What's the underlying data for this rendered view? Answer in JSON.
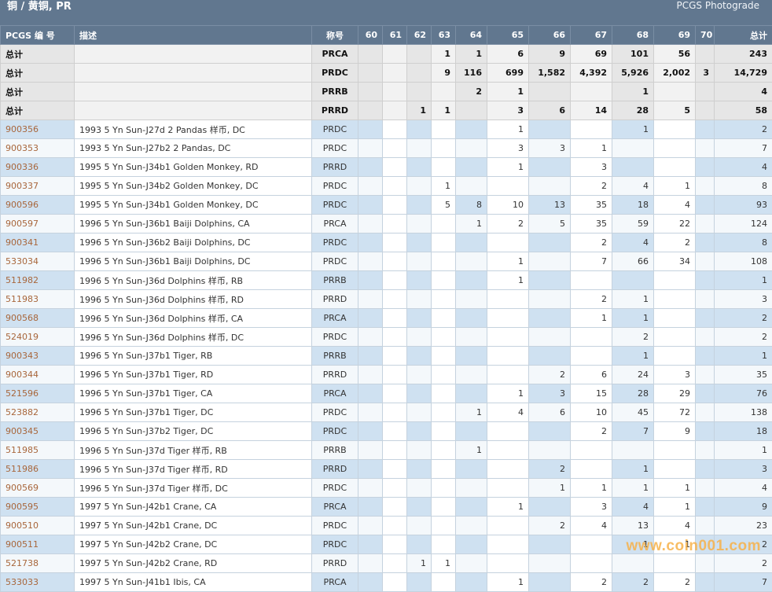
{
  "header": {
    "title": "铜 / 黄铜, PR",
    "brand": "PCGS Photograde"
  },
  "table": {
    "columns": {
      "code": "PCGS 编 号",
      "desc": "描述",
      "desig": "称号",
      "grades": [
        "60",
        "61",
        "62",
        "63",
        "64",
        "65",
        "66",
        "67",
        "68",
        "69",
        "70"
      ],
      "total": "总计"
    },
    "totals": [
      {
        "label": "总计",
        "desig": "PRCA",
        "grades": [
          "",
          "",
          "",
          "1",
          "1",
          "6",
          "9",
          "69",
          "101",
          "56",
          ""
        ],
        "total": "243"
      },
      {
        "label": "总计",
        "desig": "PRDC",
        "grades": [
          "",
          "",
          "",
          "9",
          "116",
          "699",
          "1,582",
          "4,392",
          "5,926",
          "2,002",
          "3"
        ],
        "total": "14,729"
      },
      {
        "label": "总计",
        "desig": "PRRB",
        "grades": [
          "",
          "",
          "",
          "",
          "2",
          "1",
          "",
          "",
          "1",
          "",
          ""
        ],
        "total": "4"
      },
      {
        "label": "总计",
        "desig": "PRRD",
        "grades": [
          "",
          "",
          "1",
          "1",
          "",
          "3",
          "6",
          "14",
          "28",
          "5",
          ""
        ],
        "total": "58"
      }
    ],
    "rows": [
      {
        "code": "900356",
        "desc": "1993 5 Yn Sun-J27d 2 Pandas 样币, DC",
        "desig": "PRDC",
        "grades": [
          "",
          "",
          "",
          "",
          "",
          "1",
          "",
          "",
          "1",
          "",
          ""
        ],
        "total": "2"
      },
      {
        "code": "900353",
        "desc": "1993 5 Yn Sun-J27b2 2 Pandas, DC",
        "desig": "PRDC",
        "grades": [
          "",
          "",
          "",
          "",
          "",
          "3",
          "3",
          "1",
          "",
          "",
          ""
        ],
        "total": "7"
      },
      {
        "code": "900336",
        "desc": "1995 5 Yn Sun-J34b1 Golden Monkey, RD",
        "desig": "PRRD",
        "grades": [
          "",
          "",
          "",
          "",
          "",
          "1",
          "",
          "3",
          "",
          "",
          ""
        ],
        "total": "4"
      },
      {
        "code": "900337",
        "desc": "1995 5 Yn Sun-J34b2 Golden Monkey, DC",
        "desig": "PRDC",
        "grades": [
          "",
          "",
          "",
          "1",
          "",
          "",
          "",
          "2",
          "4",
          "1",
          ""
        ],
        "total": "8"
      },
      {
        "code": "900596",
        "desc": "1995 5 Yn Sun-J34b1 Golden Monkey, DC",
        "desig": "PRDC",
        "grades": [
          "",
          "",
          "",
          "5",
          "8",
          "10",
          "13",
          "35",
          "18",
          "4",
          ""
        ],
        "total": "93"
      },
      {
        "code": "900597",
        "desc": "1996 5 Yn Sun-J36b1 Baiji Dolphins, CA",
        "desig": "PRCA",
        "grades": [
          "",
          "",
          "",
          "",
          "1",
          "2",
          "5",
          "35",
          "59",
          "22",
          ""
        ],
        "total": "124"
      },
      {
        "code": "900341",
        "desc": "1996 5 Yn Sun-J36b2 Baiji Dolphins, DC",
        "desig": "PRDC",
        "grades": [
          "",
          "",
          "",
          "",
          "",
          "",
          "",
          "2",
          "4",
          "2",
          ""
        ],
        "total": "8"
      },
      {
        "code": "533034",
        "desc": "1996 5 Yn Sun-J36b1 Baiji Dolphins, DC",
        "desig": "PRDC",
        "grades": [
          "",
          "",
          "",
          "",
          "",
          "1",
          "",
          "7",
          "66",
          "34",
          ""
        ],
        "total": "108"
      },
      {
        "code": "511982",
        "desc": "1996 5 Yn Sun-J36d Dolphins 样币, RB",
        "desig": "PRRB",
        "grades": [
          "",
          "",
          "",
          "",
          "",
          "1",
          "",
          "",
          "",
          "",
          ""
        ],
        "total": "1"
      },
      {
        "code": "511983",
        "desc": "1996 5 Yn Sun-J36d Dolphins 样币, RD",
        "desig": "PRRD",
        "grades": [
          "",
          "",
          "",
          "",
          "",
          "",
          "",
          "2",
          "1",
          "",
          ""
        ],
        "total": "3"
      },
      {
        "code": "900568",
        "desc": "1996 5 Yn Sun-J36d Dolphins 样币, CA",
        "desig": "PRCA",
        "grades": [
          "",
          "",
          "",
          "",
          "",
          "",
          "",
          "1",
          "1",
          "",
          ""
        ],
        "total": "2"
      },
      {
        "code": "524019",
        "desc": "1996 5 Yn Sun-J36d Dolphins 样币, DC",
        "desig": "PRDC",
        "grades": [
          "",
          "",
          "",
          "",
          "",
          "",
          "",
          "",
          "2",
          "",
          ""
        ],
        "total": "2"
      },
      {
        "code": "900343",
        "desc": "1996 5 Yn Sun-J37b1 Tiger, RB",
        "desig": "PRRB",
        "grades": [
          "",
          "",
          "",
          "",
          "",
          "",
          "",
          "",
          "1",
          "",
          ""
        ],
        "total": "1"
      },
      {
        "code": "900344",
        "desc": "1996 5 Yn Sun-J37b1 Tiger, RD",
        "desig": "PRRD",
        "grades": [
          "",
          "",
          "",
          "",
          "",
          "",
          "2",
          "6",
          "24",
          "3",
          ""
        ],
        "total": "35"
      },
      {
        "code": "521596",
        "desc": "1996 5 Yn Sun-J37b1 Tiger, CA",
        "desig": "PRCA",
        "grades": [
          "",
          "",
          "",
          "",
          "",
          "1",
          "3",
          "15",
          "28",
          "29",
          ""
        ],
        "total": "76"
      },
      {
        "code": "523882",
        "desc": "1996 5 Yn Sun-J37b1 Tiger, DC",
        "desig": "PRDC",
        "grades": [
          "",
          "",
          "",
          "",
          "1",
          "4",
          "6",
          "10",
          "45",
          "72",
          ""
        ],
        "total": "138"
      },
      {
        "code": "900345",
        "desc": "1996 5 Yn Sun-J37b2 Tiger, DC",
        "desig": "PRDC",
        "grades": [
          "",
          "",
          "",
          "",
          "",
          "",
          "",
          "2",
          "7",
          "9",
          ""
        ],
        "total": "18"
      },
      {
        "code": "511985",
        "desc": "1996 5 Yn Sun-J37d Tiger 样币, RB",
        "desig": "PRRB",
        "grades": [
          "",
          "",
          "",
          "",
          "1",
          "",
          "",
          "",
          "",
          "",
          ""
        ],
        "total": "1"
      },
      {
        "code": "511986",
        "desc": "1996 5 Yn Sun-J37d Tiger 样币, RD",
        "desig": "PRRD",
        "grades": [
          "",
          "",
          "",
          "",
          "",
          "",
          "2",
          "",
          "1",
          "",
          ""
        ],
        "total": "3"
      },
      {
        "code": "900569",
        "desc": "1996 5 Yn Sun-J37d Tiger 样币, DC",
        "desig": "PRDC",
        "grades": [
          "",
          "",
          "",
          "",
          "",
          "",
          "1",
          "1",
          "1",
          "1",
          ""
        ],
        "total": "4"
      },
      {
        "code": "900595",
        "desc": "1997 5 Yn Sun-J42b1 Crane, CA",
        "desig": "PRCA",
        "grades": [
          "",
          "",
          "",
          "",
          "",
          "1",
          "",
          "3",
          "4",
          "1",
          ""
        ],
        "total": "9"
      },
      {
        "code": "900510",
        "desc": "1997 5 Yn Sun-J42b1 Crane, DC",
        "desig": "PRDC",
        "grades": [
          "",
          "",
          "",
          "",
          "",
          "",
          "2",
          "4",
          "13",
          "4",
          ""
        ],
        "total": "23"
      },
      {
        "code": "900511",
        "desc": "1997 5 Yn Sun-J42b2 Crane, DC",
        "desig": "PRDC",
        "grades": [
          "",
          "",
          "",
          "",
          "",
          "",
          "",
          "",
          "1",
          "1",
          ""
        ],
        "total": "2"
      },
      {
        "code": "521738",
        "desc": "1997 5 Yn Sun-J42b2 Crane, RD",
        "desig": "PRRD",
        "grades": [
          "",
          "",
          "1",
          "1",
          "",
          "",
          "",
          "",
          "",
          "",
          ""
        ],
        "total": "2"
      },
      {
        "code": "533033",
        "desc": "1997 5 Yn Sun-J41b1 Ibis, CA",
        "desig": "PRCA",
        "grades": [
          "",
          "",
          "",
          "",
          "",
          "1",
          "",
          "2",
          "2",
          "2",
          ""
        ],
        "total": "7"
      }
    ]
  },
  "watermark": "www.coin001.com",
  "colors": {
    "header_bg": "#61778f",
    "row_blue": "#cfe1f1",
    "row_light": "#f4f8fb",
    "total_bg": "#e6e6e6",
    "link": "#a8663b",
    "watermark": "#f7b24a"
  }
}
